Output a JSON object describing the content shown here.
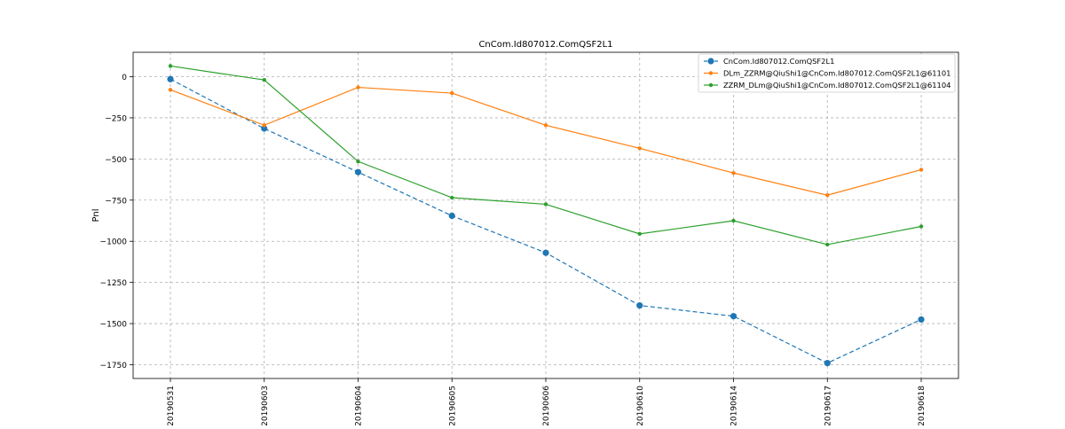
{
  "chart_data": {
    "type": "line",
    "title": "CnCom.Id807012.ComQSF2L1",
    "xlabel": "",
    "ylabel": "Pnl",
    "categories": [
      "20190531",
      "20190603",
      "20190604",
      "20190605",
      "20190606",
      "20190610",
      "20190614",
      "20190617",
      "20190618"
    ],
    "ylim": [
      -1830,
      150
    ],
    "yticks": [
      0,
      -250,
      -500,
      -750,
      -1000,
      -1250,
      -1500,
      -1750
    ],
    "grid": true,
    "legend_position": "top-right",
    "series": [
      {
        "name": "CnCom.Id807012.ComQSF2L1",
        "color": "#1f77b4",
        "line_style": "dashed",
        "marker": "circle-large",
        "values": [
          -15,
          -315,
          -580,
          -845,
          -1070,
          -1390,
          -1455,
          -1740,
          -1475
        ]
      },
      {
        "name": "DLm_ZZRM@QiuShi1@CnCom.Id807012.ComQSF2L1@61101",
        "color": "#ff7f0e",
        "line_style": "solid",
        "marker": "circle-small",
        "values": [
          -80,
          -295,
          -65,
          -100,
          -295,
          -435,
          -585,
          -720,
          -565
        ]
      },
      {
        "name": "ZZRM_DLm@QiuShi1@CnCom.Id807012.ComQSF2L1@61104",
        "color": "#2ca02c",
        "line_style": "solid",
        "marker": "circle-small",
        "values": [
          65,
          -20,
          -515,
          -735,
          -775,
          -955,
          -875,
          -1020,
          -910
        ]
      }
    ]
  }
}
